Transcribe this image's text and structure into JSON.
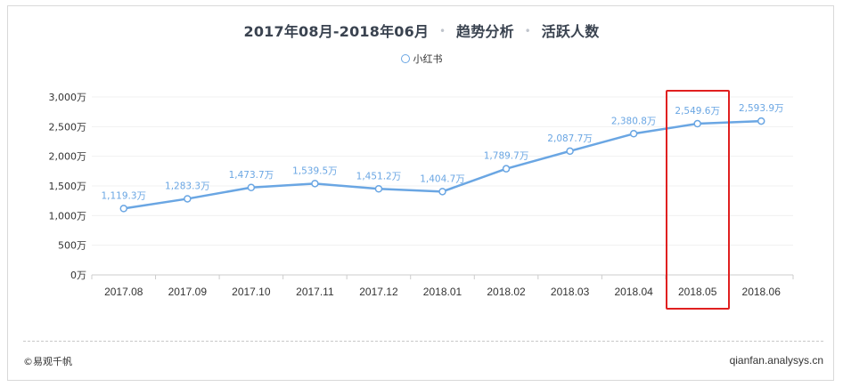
{
  "header": {
    "date_range": "2017年08月-2018年06月",
    "sep1": "•",
    "analysis": "趋势分析",
    "sep2": "•",
    "metric": "活跃人数"
  },
  "footer": {
    "copyright": "©易观千帆",
    "site": "qianfan.analysys.cn"
  },
  "colors": {
    "line": "#6aa6e3",
    "label": "#6aa6e3",
    "highlight": "#e02020",
    "axis_text": "#333333",
    "grid": "#f0f0f0"
  },
  "chart_data": {
    "type": "line",
    "title": "2017年08月-2018年06月 • 趋势分析 • 活跃人数",
    "categories": [
      "2017.08",
      "2017.09",
      "2017.10",
      "2017.11",
      "2017.12",
      "2018.01",
      "2018.02",
      "2018.03",
      "2018.04",
      "2018.05",
      "2018.06"
    ],
    "series": [
      {
        "name": "小红书",
        "values": [
          1119.3,
          1283.3,
          1473.7,
          1539.5,
          1451.2,
          1404.7,
          1789.7,
          2087.7,
          2380.8,
          2549.6,
          2593.9
        ],
        "labels": [
          "1,119.3万",
          "1,283.3万",
          "1,473.7万",
          "1,539.5万",
          "1,451.2万",
          "1,404.7万",
          "1,789.7万",
          "2,087.7万",
          "2,380.8万",
          "2,549.6万",
          "2,593.9万"
        ]
      }
    ],
    "yticks": [
      0,
      500,
      1000,
      1500,
      2000,
      2500,
      3000
    ],
    "ytick_labels": [
      "0万",
      "500万",
      "1,000万",
      "1,500万",
      "2,000万",
      "2,500万",
      "3,000万"
    ],
    "ylim": [
      0,
      3000
    ],
    "highlight_category": "2018.05",
    "grid": true,
    "legend_position": "top-center"
  }
}
